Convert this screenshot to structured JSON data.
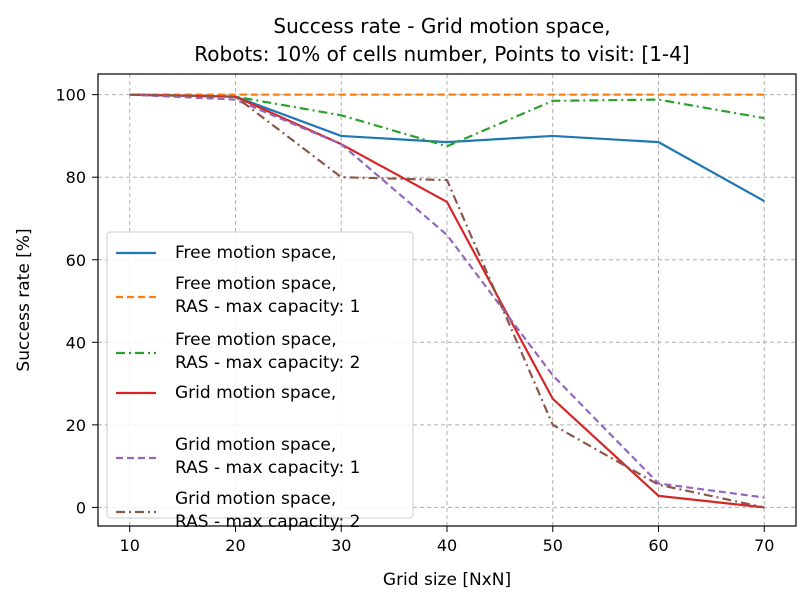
{
  "chart_data": {
    "type": "line",
    "title_lines": [
      "Success rate - Grid motion space,",
      "Robots: 10% of cells number, Points to visit: [1-4]"
    ],
    "xlabel": "Grid size [NxN]",
    "ylabel": "Success rate [%]",
    "xlim": [
      7,
      73
    ],
    "ylim": [
      -4.5,
      105
    ],
    "x": [
      10,
      20,
      30,
      40,
      50,
      60,
      70
    ],
    "xticks": [
      10,
      20,
      30,
      40,
      50,
      60,
      70
    ],
    "yticks": [
      0,
      20,
      40,
      60,
      80,
      100
    ],
    "grid": true,
    "legend_position": "lower-left",
    "series": [
      {
        "name_lines": [
          "Free motion space,"
        ],
        "color": "#1f77b4",
        "dash": "solid",
        "values": [
          100,
          99.5,
          90,
          88.5,
          90,
          88.5,
          74.2
        ]
      },
      {
        "name_lines": [
          "Free motion space,",
          "RAS - max capacity: 1"
        ],
        "color": "#ff7f0e",
        "dash": "dashed",
        "values": [
          100,
          100,
          100,
          100,
          100,
          100,
          100
        ]
      },
      {
        "name_lines": [
          "Free motion space,",
          "RAS - max capacity: 2"
        ],
        "color": "#2ca02c",
        "dash": "dashdot",
        "values": [
          100,
          99.5,
          95,
          87.5,
          98.5,
          98.8,
          94.3
        ]
      },
      {
        "name_lines": [
          "Grid motion space,"
        ],
        "color": "#d62728",
        "dash": "solid",
        "values": [
          100,
          99.5,
          88,
          74,
          26.3,
          2.8,
          0
        ]
      },
      {
        "name_lines": [
          "Grid motion space,",
          "RAS - max capacity: 1"
        ],
        "color": "#9467bd",
        "dash": "dashed",
        "values": [
          100,
          98.8,
          88,
          66,
          32,
          5.8,
          2.4
        ]
      },
      {
        "name_lines": [
          "Grid motion space,",
          "RAS - max capacity: 2"
        ],
        "color": "#8c564b",
        "dash": "dashdot",
        "values": [
          100,
          99.5,
          80,
          79.3,
          20,
          5.5,
          0
        ]
      }
    ]
  }
}
